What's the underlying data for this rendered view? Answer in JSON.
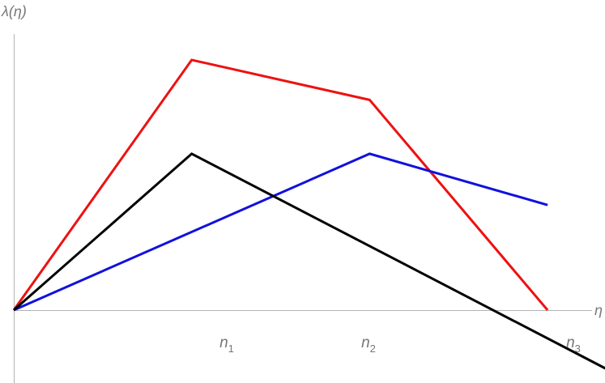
{
  "chart_data": {
    "type": "line",
    "xlabel": "η",
    "ylabel": "λ(η)",
    "ticks": [
      {
        "base": "n",
        "sub": "1",
        "x": 1
      },
      {
        "base": "n",
        "sub": "2",
        "x": 2
      },
      {
        "base": "n",
        "sub": "3",
        "x": 3
      }
    ],
    "xlim": [
      0,
      3.04
    ],
    "ylim": [
      -0.43,
      1.22
    ],
    "grid": false,
    "legend": "none",
    "series": [
      {
        "color": "#ee1111",
        "x": [
          0,
          1,
          2,
          3
        ],
        "y": [
          0,
          1,
          0.84,
          0
        ]
      },
      {
        "color": "#1111dd",
        "x": [
          0,
          2,
          3
        ],
        "y": [
          0,
          0.625,
          0.42
        ]
      },
      {
        "color": "#000000",
        "x": [
          0,
          1,
          3.43
        ],
        "y": [
          0,
          0.625,
          -0.272
        ]
      }
    ]
  }
}
